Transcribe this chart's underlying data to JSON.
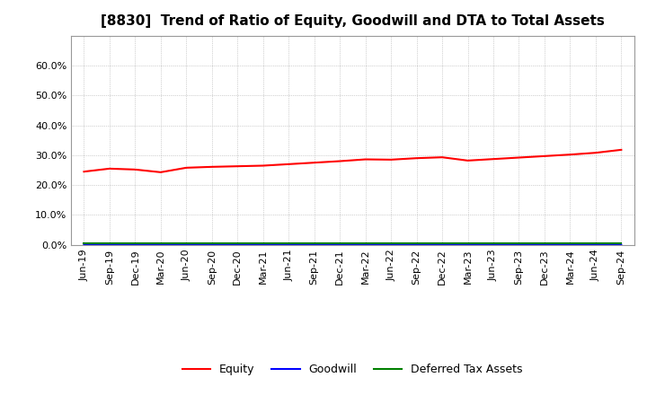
{
  "title": "[8830]  Trend of Ratio of Equity, Goodwill and DTA to Total Assets",
  "x_labels": [
    "Jun-19",
    "Sep-19",
    "Dec-19",
    "Mar-20",
    "Jun-20",
    "Sep-20",
    "Dec-20",
    "Mar-21",
    "Jun-21",
    "Sep-21",
    "Dec-21",
    "Mar-22",
    "Jun-22",
    "Sep-22",
    "Dec-22",
    "Mar-23",
    "Jun-23",
    "Sep-23",
    "Dec-23",
    "Mar-24",
    "Jun-24",
    "Sep-24"
  ],
  "equity": [
    24.5,
    25.5,
    25.2,
    24.3,
    25.8,
    26.1,
    26.3,
    26.5,
    27.0,
    27.5,
    28.0,
    28.6,
    28.5,
    29.0,
    29.3,
    28.2,
    28.7,
    29.2,
    29.7,
    30.2,
    30.8,
    31.8
  ],
  "goodwill": [
    0.05,
    0.05,
    0.08,
    0.05,
    0.05,
    0.05,
    0.05,
    0.05,
    0.05,
    0.05,
    0.05,
    0.05,
    0.05,
    0.05,
    0.05,
    0.05,
    0.05,
    0.05,
    0.05,
    0.05,
    0.05,
    0.05
  ],
  "dta": [
    0.6,
    0.6,
    0.6,
    0.6,
    0.6,
    0.6,
    0.6,
    0.6,
    0.6,
    0.6,
    0.6,
    0.6,
    0.6,
    0.6,
    0.6,
    0.6,
    0.6,
    0.6,
    0.6,
    0.6,
    0.6,
    0.6
  ],
  "equity_color": "#FF0000",
  "goodwill_color": "#0000FF",
  "dta_color": "#008000",
  "ylim": [
    0,
    70
  ],
  "yticks": [
    0,
    10,
    20,
    30,
    40,
    50,
    60
  ],
  "ytick_labels": [
    "0.0%",
    "10.0%",
    "20.0%",
    "30.0%",
    "40.0%",
    "50.0%",
    "60.0%"
  ],
  "background_color": "#FFFFFF",
  "plot_bg_color": "#FFFFFF",
  "grid_color": "#AAAAAA",
  "title_fontsize": 11,
  "tick_fontsize": 8,
  "legend_labels": [
    "Equity",
    "Goodwill",
    "Deferred Tax Assets"
  ]
}
